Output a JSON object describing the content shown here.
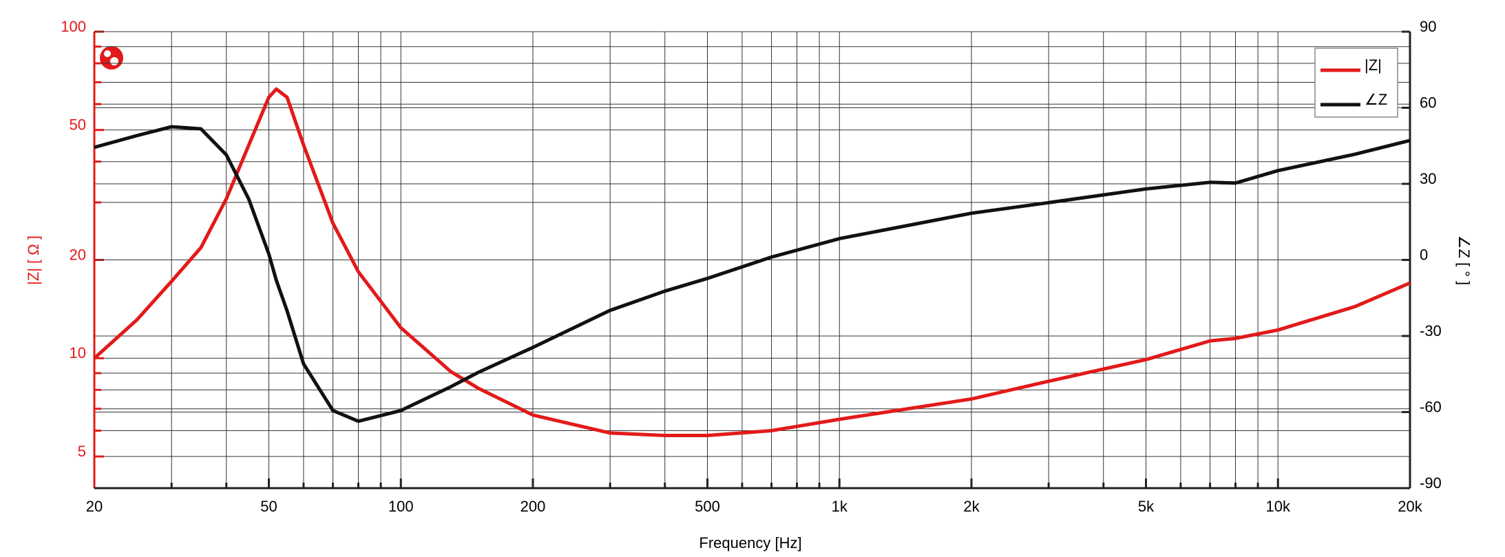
{
  "chart_data": {
    "type": "line",
    "xlabel": "Frequency [Hz]",
    "ylabel": "|Z| [ Ω ]",
    "y2label": "∠Z [ ° ]",
    "xscale": "log",
    "yscale": "log",
    "grid": true,
    "legend": "upper right",
    "xlim": [
      20,
      20000
    ],
    "xticks": [
      20,
      50,
      100,
      200,
      500,
      {
        "value": 1000,
        "label": "1k"
      },
      {
        "value": 2000,
        "label": "2k"
      },
      {
        "value": 5000,
        "label": "5k"
      },
      {
        "value": 10000,
        "label": "10k"
      },
      {
        "value": 20000,
        "label": "20k"
      }
    ],
    "xminorticks": [
      30,
      40,
      60,
      70,
      80,
      90,
      300,
      400,
      600,
      700,
      800,
      900,
      3000,
      4000,
      6000,
      7000,
      8000,
      9000
    ],
    "ylim": [
      4,
      100
    ],
    "yticks": [
      5,
      10,
      20,
      50,
      100
    ],
    "yminorticks": [
      6,
      7,
      8,
      9,
      30,
      40,
      60,
      70,
      80,
      90
    ],
    "y2lim": [
      -90,
      90
    ],
    "y2ticks": [
      -90,
      -60,
      -30,
      0,
      30,
      60,
      90
    ],
    "x": [
      20,
      25,
      30,
      35,
      40,
      45,
      50,
      52,
      55,
      60,
      70,
      80,
      100,
      130,
      150,
      200,
      300,
      400,
      500,
      700,
      1000,
      2000,
      3000,
      5000,
      7000,
      8000,
      10000,
      15000,
      20000
    ],
    "series": [
      {
        "name": "|Z|",
        "color": "#e21a1a",
        "axis": "y",
        "values": [
          10,
          13.1,
          17.2,
          21.8,
          30.8,
          44.9,
          63,
          66.7,
          63,
          45,
          25.9,
          18.4,
          12.4,
          9.1,
          8.1,
          6.7,
          5.9,
          5.8,
          5.8,
          6.0,
          6.5,
          7.5,
          8.5,
          9.9,
          11.3,
          11.5,
          12.2,
          14.4,
          17
        ]
      },
      {
        "name": "∠Z",
        "color": "#111111",
        "axis": "y2",
        "values": [
          44.4,
          49,
          52.5,
          51.7,
          41.4,
          24,
          2.3,
          -8,
          -20,
          -41,
          -59.4,
          -63.6,
          -59.4,
          -50,
          -44.4,
          -34.5,
          -19.9,
          -12.3,
          -7.3,
          1.1,
          8.4,
          18.4,
          22.6,
          28,
          30.6,
          30.3,
          35.2,
          41.7,
          47.1
        ]
      }
    ]
  }
}
